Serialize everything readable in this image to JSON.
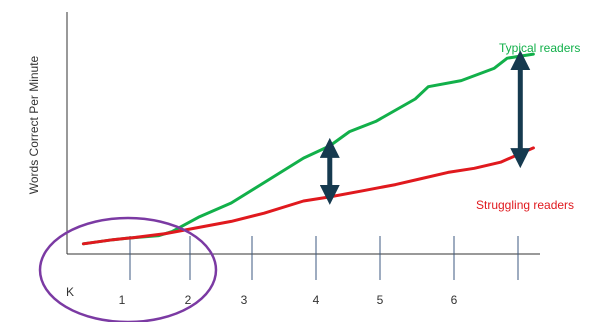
{
  "chart_data": {
    "type": "line",
    "title": "",
    "xlabel": "",
    "ylabel": "Words Correct Per Minute",
    "categories": [
      "K",
      "1",
      "2",
      "3",
      "4",
      "5",
      "6"
    ],
    "grid": false,
    "x_range": [
      0,
      7.2
    ],
    "y_range": [
      0,
      100
    ],
    "series": [
      {
        "name": "Typical readers",
        "color": "#12b04a",
        "x": [
          0.25,
          0.7,
          1.0,
          1.4,
          1.6,
          2.0,
          2.5,
          3.0,
          3.6,
          4.0,
          4.3,
          4.7,
          5.3,
          5.5,
          6.0,
          6.5,
          6.7,
          7.1
        ],
        "y": [
          5,
          7,
          8,
          9,
          11,
          18,
          25,
          35,
          47,
          53,
          60,
          65,
          76,
          82,
          85,
          91,
          96,
          98
        ]
      },
      {
        "name": "Struggling readers",
        "color": "#e0191e",
        "x": [
          0.25,
          0.7,
          1.0,
          1.5,
          2.0,
          2.5,
          3.0,
          3.6,
          4.0,
          4.5,
          5.0,
          5.4,
          5.8,
          6.2,
          6.6,
          7.1
        ],
        "y": [
          5,
          7,
          8,
          10,
          13,
          16,
          20,
          26,
          28,
          31,
          34,
          37,
          40,
          42,
          45,
          52
        ]
      }
    ],
    "gap_arrows": [
      {
        "x": 4.0,
        "from": 28,
        "to": 53,
        "color": "#163a4f"
      },
      {
        "x": 6.9,
        "from": 46,
        "to": 96,
        "color": "#163a4f"
      }
    ],
    "highlight": {
      "shape": "ellipse",
      "around": [
        "K",
        "1",
        "2"
      ],
      "color": "#7b3aa3"
    }
  }
}
